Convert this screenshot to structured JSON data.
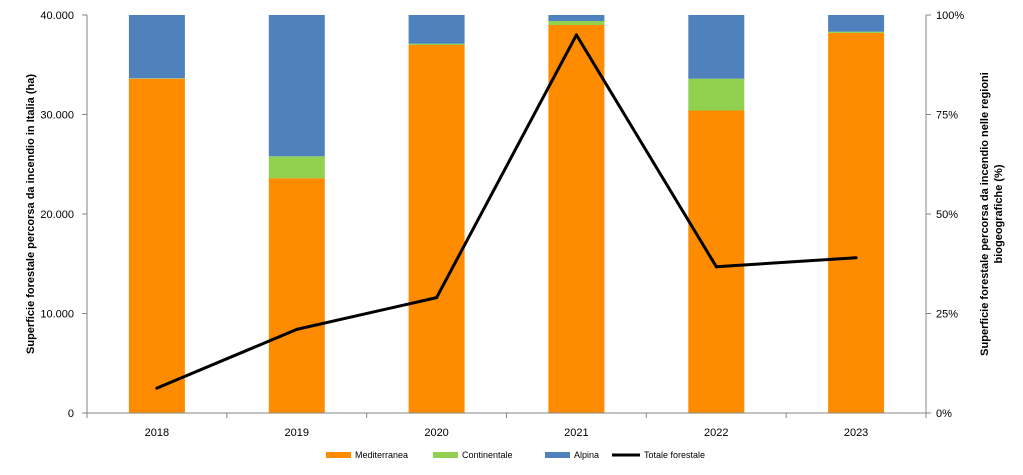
{
  "chart_data": {
    "type": "bar",
    "stacked": true,
    "bar_values_as_percent": true,
    "categories": [
      "2018",
      "2019",
      "2020",
      "2021",
      "2022",
      "2023"
    ],
    "series": [
      {
        "name": "Mediterranea",
        "type": "bar",
        "axis": "right",
        "color": "#FF8C00",
        "values": [
          84.0,
          59.0,
          92.5,
          97.5,
          76.0,
          95.5
        ]
      },
      {
        "name": "Continentale",
        "type": "bar",
        "axis": "right",
        "color": "#92D050",
        "values": [
          0.1,
          5.5,
          0.3,
          1.0,
          8.0,
          0.3
        ]
      },
      {
        "name": "Alpina",
        "type": "bar",
        "axis": "right",
        "color": "#4F81BD",
        "values": [
          15.9,
          35.5,
          7.2,
          1.5,
          16.0,
          4.2
        ]
      },
      {
        "name": "Totale forestale",
        "type": "line",
        "axis": "left",
        "color": "#000000",
        "values": [
          2500,
          8400,
          11600,
          38000,
          14700,
          15600
        ]
      }
    ],
    "ylabel": "Superficie forestale percorsa da incendio in Italia (ha)",
    "y2label_line1": "Superficie forestale percorsa da incendio nelle regioni",
    "y2label_line2": "biogeografiche (%)",
    "ylim": [
      0,
      40000
    ],
    "y2lim": [
      0,
      100
    ],
    "yticks": [
      "0",
      "10.000",
      "20.000",
      "30.000",
      "40.000"
    ],
    "y2ticks": [
      "0%",
      "25%",
      "50%",
      "75%",
      "100%"
    ],
    "grid": false,
    "legend_position": "bottom"
  }
}
